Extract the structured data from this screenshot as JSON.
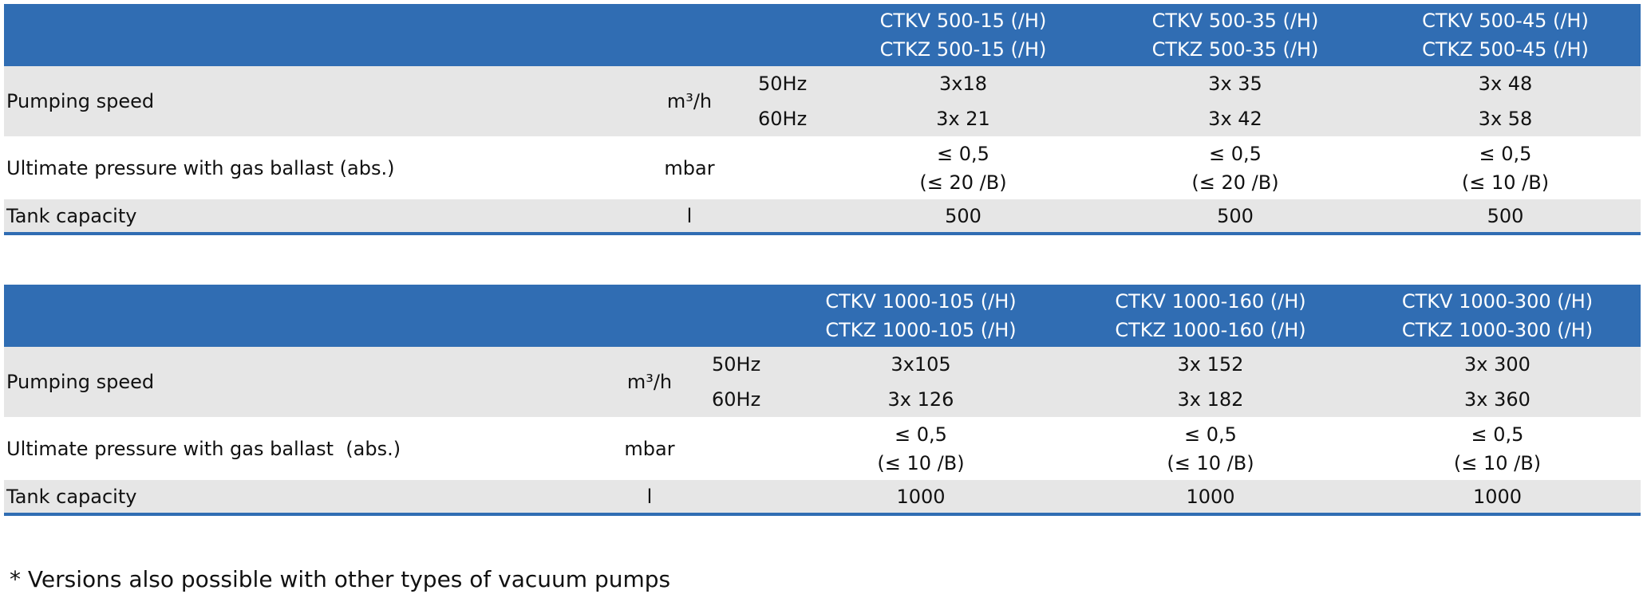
{
  "tables": [
    {
      "header": {
        "columns": [
          [
            "CTKV 500-15 (/H)",
            "CTKZ 500-15 (/H)"
          ],
          [
            "CTKV 500-35 (/H)",
            "CTKZ 500-35 (/H)"
          ],
          [
            "CTKV 500-45 (/H)",
            "CTKZ 500-45 (/H)"
          ]
        ]
      },
      "rows": [
        {
          "label": "Pumping speed",
          "unit": "m³/h",
          "sub": [
            {
              "freq": "50Hz",
              "values": [
                "3x18",
                "3x 35",
                "3x 48"
              ]
            },
            {
              "freq": "60Hz",
              "values": [
                "3x 21",
                "3x 42",
                "3x 58"
              ]
            }
          ]
        },
        {
          "label": "Ultimate pressure with gas ballast (abs.)",
          "unit": "mbar",
          "values": [
            [
              "≤ 0,5",
              "(≤ 20 /B)"
            ],
            [
              "≤ 0,5",
              "(≤ 20 /B)"
            ],
            [
              "≤ 0,5",
              "(≤ 10 /B)"
            ]
          ]
        },
        {
          "label": "Tank capacity",
          "unit": "l",
          "values": [
            "500",
            "500",
            "500"
          ]
        }
      ]
    },
    {
      "header": {
        "columns": [
          [
            "CTKV 1000-105 (/H)",
            "CTKZ 1000-105 (/H)"
          ],
          [
            "CTKV 1000-160 (/H)",
            "CTKZ 1000-160 (/H)"
          ],
          [
            "CTKV 1000-300 (/H)",
            "CTKZ 1000-300 (/H)"
          ]
        ]
      },
      "rows": [
        {
          "label": "Pumping speed",
          "unit": "m³/h",
          "sub": [
            {
              "freq": "50Hz",
              "values": [
                "3x105",
                "3x 152",
                "3x 300"
              ]
            },
            {
              "freq": "60Hz",
              "values": [
                "3x 126",
                "3x 182",
                "3x 360"
              ]
            }
          ]
        },
        {
          "label": "Ultimate pressure with gas ballast  (abs.)",
          "unit": "mbar",
          "values": [
            [
              "≤ 0,5",
              "(≤ 10 /B)"
            ],
            [
              "≤ 0,5",
              "(≤ 10 /B)"
            ],
            [
              "≤ 0,5",
              "(≤ 10 /B)"
            ]
          ]
        },
        {
          "label": "Tank capacity",
          "unit": "l",
          "values": [
            "1000",
            "1000",
            "1000"
          ]
        }
      ]
    }
  ],
  "footnote": "* Versions also possible with other types of vacuum pumps"
}
